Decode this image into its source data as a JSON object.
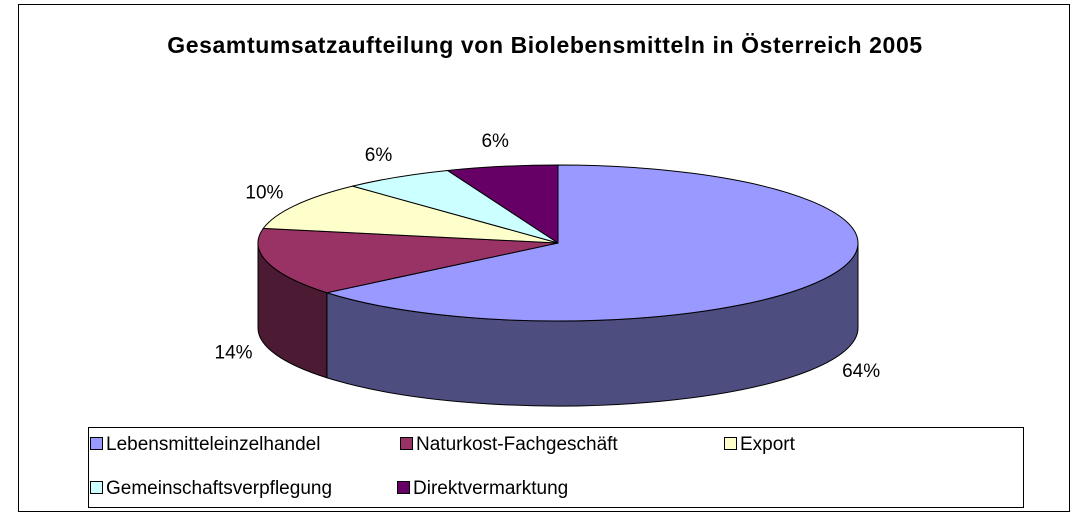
{
  "chart_data": {
    "type": "pie3d",
    "title": "Gesamtumsatzaufteilung von Biolebensmitteln in Österreich 2005",
    "categories": [
      "Lebensmitteleinzelhandel",
      "Naturkost-Fachgeschäft",
      "Export",
      "Gemeinschaftsverpflegung",
      "Direktvermarktung"
    ],
    "values": [
      64,
      14,
      10,
      6,
      6
    ],
    "value_labels": [
      "64%",
      "14%",
      "10%",
      "6%",
      "6%"
    ],
    "colors": [
      "#9999ff",
      "#993366",
      "#ffffcc",
      "#ccffff",
      "#660066"
    ],
    "legend": "bottom"
  }
}
